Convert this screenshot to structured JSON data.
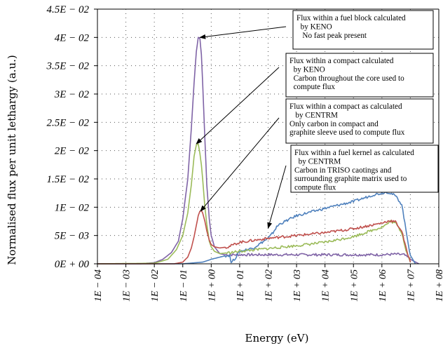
{
  "chart_data": {
    "type": "line",
    "title": "",
    "xlabel": "Energy (eV)",
    "ylabel": "Normalised flux per unit lethargy (a.u.)",
    "x_scale": "log",
    "xlim": [
      0.0001,
      100000000.0
    ],
    "ylim": [
      0,
      0.045
    ],
    "grid": "dotted",
    "x_ticks": [
      0.0001,
      0.001,
      0.01,
      0.1,
      1.0,
      10.0,
      100.0,
      1000.0,
      10000.0,
      100000.0,
      1000000.0,
      10000000.0,
      100000000.0
    ],
    "x_tick_labels": [
      "1E − 04",
      "1E − 03",
      "1E − 02",
      "1E − 01",
      "1E + 00",
      "1E + 01",
      "1E + 02",
      "1E + 03",
      "1E + 04",
      "1E + 05",
      "1E + 06",
      "1E + 07",
      "1E + 08"
    ],
    "y_ticks": [
      0,
      0.005,
      0.01,
      0.015,
      0.02,
      0.025,
      0.03,
      0.035,
      0.04,
      0.045
    ],
    "y_tick_labels": [
      "0E + 00",
      "5E − 03",
      "1E − 02",
      "1.5E − 02",
      "2E − 02",
      "2.5E − 02",
      "3E − 02",
      "3.5E − 02",
      "4E − 02",
      "4.5E − 02"
    ],
    "series": [
      {
        "color": "#7f63a6",
        "x": [
          0.0001,
          0.003,
          0.01,
          0.02,
          0.04,
          0.07,
          0.1,
          0.15,
          0.2,
          0.25,
          0.3,
          0.35,
          0.4,
          0.45,
          0.5,
          0.6,
          0.7,
          0.85,
          1,
          1.3,
          2,
          3,
          10,
          100,
          1000,
          10000,
          100000,
          1000000,
          3000000,
          6000000,
          10000000,
          20000000
        ],
        "y": [
          0,
          0,
          0.0002,
          0.0008,
          0.002,
          0.004,
          0.008,
          0.015,
          0.024,
          0.032,
          0.0375,
          0.04,
          0.0398,
          0.037,
          0.032,
          0.022,
          0.014,
          0.008,
          0.005,
          0.003,
          0.0018,
          0.0016,
          0.0016,
          0.0016,
          0.0016,
          0.0016,
          0.0016,
          0.0016,
          0.0017,
          0.0016,
          0.0008,
          0
        ]
      },
      {
        "color": "#4f81bd",
        "x": [
          0.0001,
          0.1,
          0.5,
          1,
          3,
          4.5,
          5,
          7,
          10,
          30,
          100,
          150,
          170,
          200,
          250,
          1000,
          10000,
          100000,
          300000,
          500000,
          1000000,
          1500000,
          2000000,
          3000000,
          5000000,
          7000000,
          10000000,
          15000000
        ],
        "y": [
          0,
          0,
          0.0003,
          0.0008,
          0.0014,
          0.0015,
          0.0002,
          0.001,
          0.0022,
          0.0028,
          0.0045,
          0.0055,
          0.006,
          0.0065,
          0.007,
          0.0085,
          0.0098,
          0.011,
          0.0118,
          0.0122,
          0.0125,
          0.0127,
          0.0125,
          0.012,
          0.0105,
          0.006,
          0.0015,
          0
        ]
      },
      {
        "color": "#9bbb59",
        "x": [
          0.0001,
          0.01,
          0.03,
          0.06,
          0.1,
          0.15,
          0.2,
          0.25,
          0.3,
          0.35,
          0.4,
          0.45,
          0.5,
          0.6,
          0.7,
          0.85,
          1,
          1.3,
          2,
          5,
          10,
          100,
          1000,
          10000,
          100000,
          1000000,
          1500000,
          2000000,
          3000000,
          5000000,
          7000000,
          10000000
        ],
        "y": [
          0,
          0.0001,
          0.0008,
          0.0025,
          0.005,
          0.009,
          0.014,
          0.019,
          0.021,
          0.0212,
          0.0195,
          0.0175,
          0.015,
          0.01,
          0.007,
          0.004,
          0.003,
          0.0022,
          0.0018,
          0.002,
          0.0022,
          0.0027,
          0.0032,
          0.0038,
          0.0048,
          0.0065,
          0.007,
          0.0075,
          0.0072,
          0.0055,
          0.0025,
          0.0003
        ]
      },
      {
        "color": "#c0504d",
        "x": [
          0.0001,
          0.05,
          0.1,
          0.15,
          0.2,
          0.25,
          0.3,
          0.35,
          0.4,
          0.45,
          0.5,
          0.6,
          0.7,
          0.85,
          1,
          1.3,
          2,
          4,
          7,
          10,
          100,
          1000,
          10000,
          100000,
          1000000,
          1500000,
          2000000,
          3000000,
          5000000,
          7000000,
          10000000
        ],
        "y": [
          0,
          0,
          0.0003,
          0.0012,
          0.0028,
          0.0048,
          0.0068,
          0.0085,
          0.0093,
          0.0094,
          0.009,
          0.0075,
          0.0058,
          0.0042,
          0.0034,
          0.003,
          0.0028,
          0.003,
          0.0035,
          0.0038,
          0.0045,
          0.005,
          0.0055,
          0.0062,
          0.0072,
          0.0075,
          0.0076,
          0.0074,
          0.0058,
          0.0028,
          0.0003
        ]
      }
    ],
    "annotations": [
      {
        "lines": [
          "Flux within a fuel block calculated",
          "  by KENO",
          "   No fast peak present"
        ],
        "arrow_to": [
          0.4,
          0.04
        ]
      },
      {
        "lines": [
          "Flux within a compact calculated",
          "  by KENO",
          "  Carbon throughout the core used to",
          "  compute flux"
        ],
        "arrow_to": [
          0.3,
          0.0212
        ]
      },
      {
        "lines": [
          "Flux within a compact as calculated",
          "   by CENTRM",
          "Only carbon in compact and",
          "graphite sleeve used to compute flux"
        ],
        "arrow_to": [
          0.42,
          0.0093
        ]
      },
      {
        "lines": [
          "Flux within a fuel kernel as calculated",
          "  by CENTRM",
          "Carbon in TRISO caotings and",
          "surrounding graphite matrix used to",
          "compute flux"
        ],
        "arrow_to": [
          100,
          0.0063
        ]
      }
    ]
  }
}
